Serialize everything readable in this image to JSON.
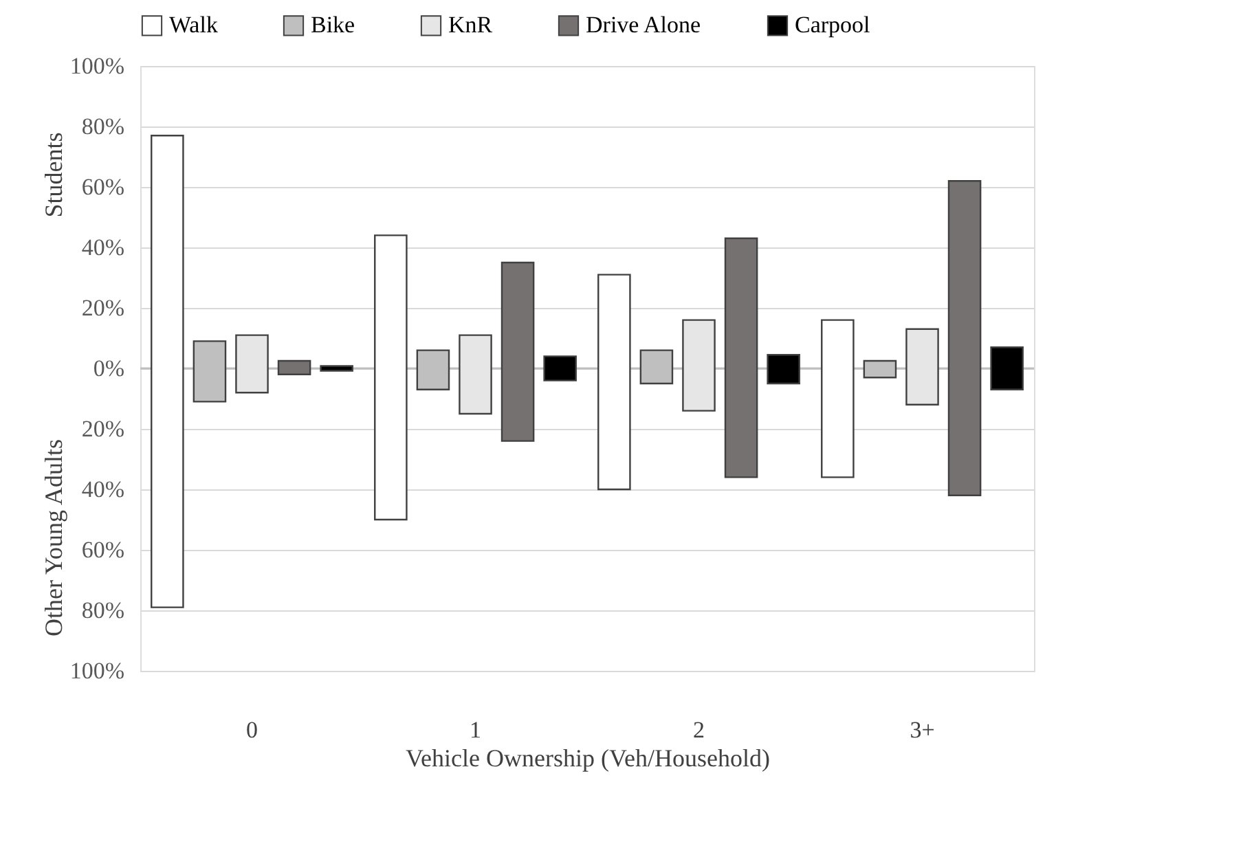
{
  "chart_data": {
    "type": "bar",
    "xlabel": "Vehicle  Ownership (Veh/Household)",
    "annotations": [
      "Students",
      "Other Young Adults"
    ],
    "categories": [
      "0",
      "1",
      "2",
      "3+"
    ],
    "series": [
      {
        "name": "Walk",
        "color": "#ffffff",
        "base": [
          -79,
          -50,
          -40,
          -36
        ],
        "values": [
          156,
          94,
          71,
          52
        ]
      },
      {
        "name": "Bike",
        "color": "#bfbfbf",
        "base": [
          -11,
          -7,
          -5,
          -3
        ],
        "values": [
          20,
          13,
          11,
          5.5
        ]
      },
      {
        "name": "KnR",
        "color": "#e6e6e6",
        "base": [
          -8,
          -15,
          -14,
          -12
        ],
        "values": [
          19,
          26,
          30,
          25
        ]
      },
      {
        "name": "Drive Alone",
        "color": "#767171",
        "base": [
          -2,
          -24,
          -36,
          -42
        ],
        "values": [
          4.5,
          59,
          79,
          104
        ]
      },
      {
        "name": "Carpool",
        "color": "#000000",
        "base": [
          -0.8,
          -4,
          -5,
          -7
        ],
        "values": [
          1.6,
          8,
          9.5,
          14
        ]
      }
    ],
    "ylim": [
      -100,
      100
    ],
    "yticks": [
      {
        "value": -100,
        "label": "100%"
      },
      {
        "value": -80,
        "label": "80%"
      },
      {
        "value": -60,
        "label": "60%"
      },
      {
        "value": -40,
        "label": "40%"
      },
      {
        "value": -20,
        "label": "20%"
      },
      {
        "value": 0,
        "label": "0%"
      },
      {
        "value": 20,
        "label": "20%"
      },
      {
        "value": 40,
        "label": "40%"
      },
      {
        "value": 60,
        "label": "60%"
      },
      {
        "value": 80,
        "label": "80%"
      },
      {
        "value": 100,
        "label": "100%"
      }
    ],
    "ref_lines": [
      {
        "axis": "y",
        "value": 0,
        "color": "#bfbfbf"
      }
    ],
    "grid": "y",
    "legend": "top"
  }
}
